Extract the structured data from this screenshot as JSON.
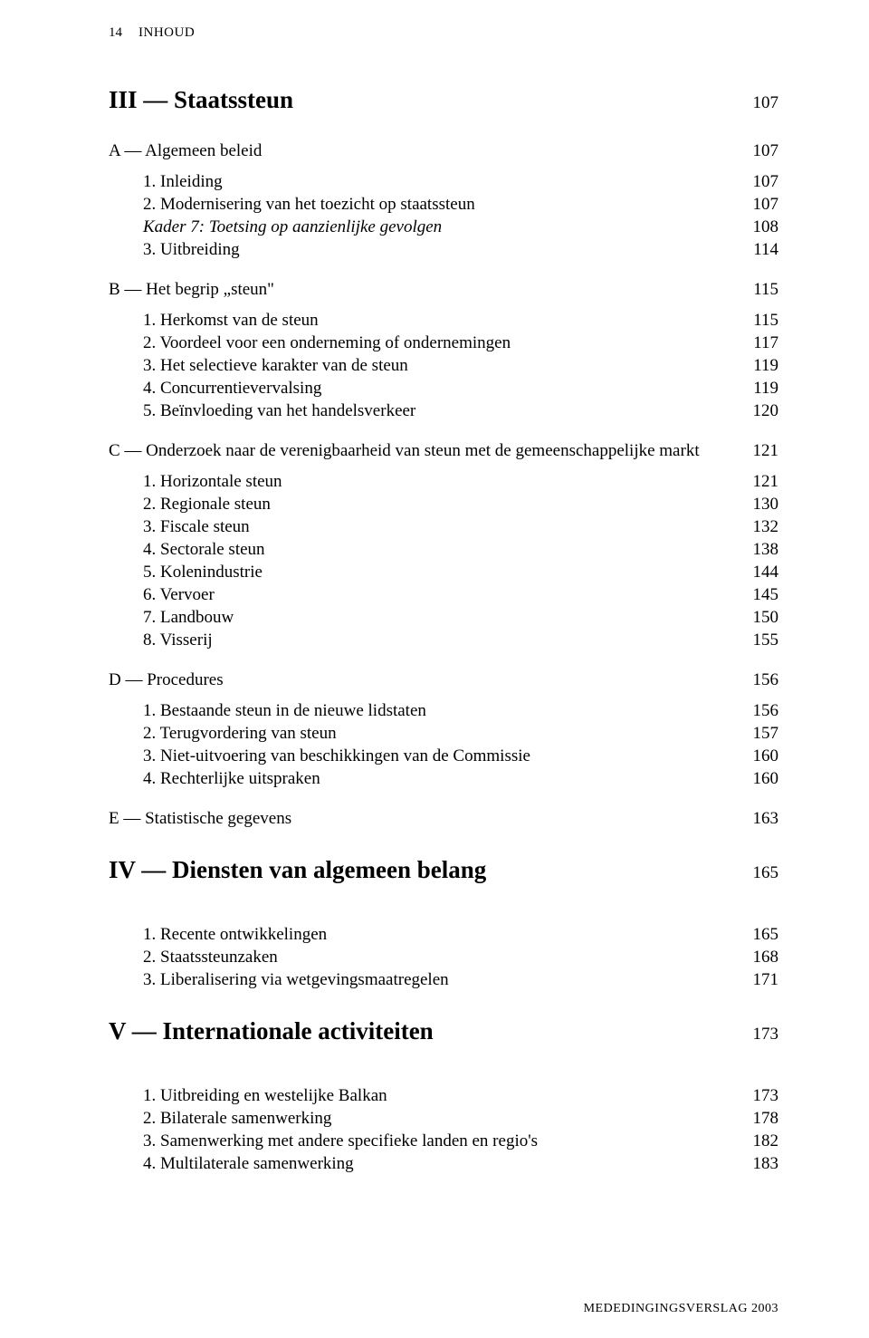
{
  "header": {
    "page_number": "14",
    "running_title": "INHOUD"
  },
  "footer": {
    "text": "MEDEDINGINGSVERSLAG 2003"
  },
  "chapters": [
    {
      "label": "III — Staatssteun",
      "page": "107",
      "sections": [
        {
          "label": "A — Algemeen beleid",
          "page": "107",
          "entries": [
            {
              "label": "1. Inleiding",
              "page": "107",
              "italic": false
            },
            {
              "label": "2. Modernisering van het toezicht op staatssteun",
              "page": "107",
              "italic": false
            },
            {
              "label": "Kader 7: Toetsing op aanzienlijke gevolgen",
              "page": "108",
              "italic": true
            },
            {
              "label": "3. Uitbreiding",
              "page": "114",
              "italic": false
            }
          ]
        },
        {
          "label": "B — Het begrip „steun\"",
          "page": "115",
          "entries": [
            {
              "label": "1. Herkomst van de steun",
              "page": "115",
              "italic": false
            },
            {
              "label": "2. Voordeel voor een onderneming of ondernemingen",
              "page": "117",
              "italic": false
            },
            {
              "label": "3. Het selectieve karakter van de steun",
              "page": "119",
              "italic": false
            },
            {
              "label": "4. Concurrentievervalsing",
              "page": "119",
              "italic": false
            },
            {
              "label": "5. Beïnvloeding van het handelsverkeer",
              "page": "120",
              "italic": false
            }
          ]
        },
        {
          "label": "C — Onderzoek naar de verenigbaarheid van steun met de gemeenschappelijke markt",
          "page": "121",
          "entries": [
            {
              "label": "1. Horizontale steun",
              "page": "121",
              "italic": false
            },
            {
              "label": "2. Regionale steun",
              "page": "130",
              "italic": false
            },
            {
              "label": "3. Fiscale steun",
              "page": "132",
              "italic": false
            },
            {
              "label": "4. Sectorale steun",
              "page": "138",
              "italic": false
            },
            {
              "label": "5. Kolenindustrie",
              "page": "144",
              "italic": false
            },
            {
              "label": "6. Vervoer",
              "page": "145",
              "italic": false
            },
            {
              "label": "7. Landbouw",
              "page": "150",
              "italic": false
            },
            {
              "label": "8. Visserij",
              "page": "155",
              "italic": false
            }
          ]
        },
        {
          "label": "D — Procedures",
          "page": "156",
          "entries": [
            {
              "label": "1. Bestaande steun in de nieuwe lidstaten",
              "page": "156",
              "italic": false
            },
            {
              "label": "2. Terugvordering van steun",
              "page": "157",
              "italic": false
            },
            {
              "label": "3. Niet-uitvoering van beschikkingen van de Commissie",
              "page": "160",
              "italic": false
            },
            {
              "label": "4. Rechterlijke uitspraken",
              "page": "160",
              "italic": false
            }
          ]
        },
        {
          "label": "E — Statistische gegevens",
          "page": "163",
          "entries": []
        }
      ]
    },
    {
      "label": "IV — Diensten van algemeen belang",
      "page": "165",
      "sections": [
        {
          "label": "",
          "page": "",
          "entries": [
            {
              "label": "1. Recente ontwikkelingen",
              "page": "165",
              "italic": false
            },
            {
              "label": "2. Staatssteunzaken",
              "page": "168",
              "italic": false
            },
            {
              "label": "3. Liberalisering via wetgevingsmaatregelen",
              "page": "171",
              "italic": false
            }
          ]
        }
      ]
    },
    {
      "label": "V — Internationale activiteiten",
      "page": "173",
      "sections": [
        {
          "label": "",
          "page": "",
          "entries": [
            {
              "label": "1. Uitbreiding en westelijke Balkan",
              "page": "173",
              "italic": false
            },
            {
              "label": "2. Bilaterale samenwerking",
              "page": "178",
              "italic": false
            },
            {
              "label": "3. Samenwerking met andere specifieke landen en regio's",
              "page": "182",
              "italic": false
            },
            {
              "label": "4. Multilaterale samenwerking",
              "page": "183",
              "italic": false
            }
          ]
        }
      ]
    }
  ]
}
